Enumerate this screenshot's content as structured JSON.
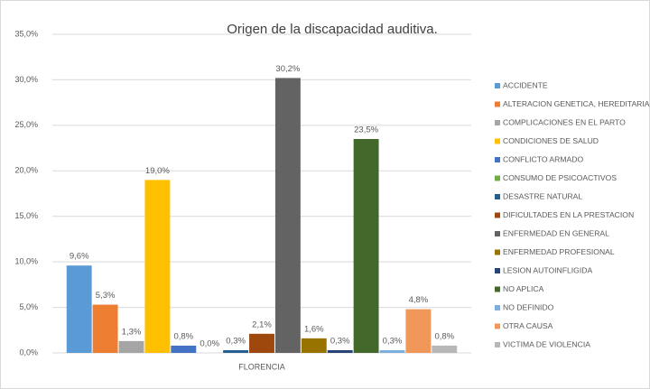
{
  "chart_data": {
    "type": "bar",
    "title": "Origen de la discapacidad auditiva.",
    "categories": [
      "FLORENCIA"
    ],
    "ylim": [
      0,
      35
    ],
    "yticks": [
      {
        "value": 0,
        "label": "0,0%"
      },
      {
        "value": 5,
        "label": "5,0%"
      },
      {
        "value": 10,
        "label": "10,0%"
      },
      {
        "value": 15,
        "label": "15,0%"
      },
      {
        "value": 20,
        "label": "20,0%"
      },
      {
        "value": 25,
        "label": "25,0%"
      },
      {
        "value": 30,
        "label": "30,0%"
      },
      {
        "value": 35,
        "label": "35,0%"
      }
    ],
    "grid": true,
    "legend": "right",
    "series": [
      {
        "name": "ACCIDENTE",
        "color": "#5b9bd5",
        "values": [
          9.6
        ],
        "value_labels": [
          "9,6%"
        ]
      },
      {
        "name": "ALTERACION GENETICA, HEREDITARIA",
        "color": "#ed7d31",
        "values": [
          5.3
        ],
        "value_labels": [
          "5,3%"
        ]
      },
      {
        "name": "COMPLICACIONES EN EL PARTO",
        "color": "#a5a5a5",
        "values": [
          1.3
        ],
        "value_labels": [
          "1,3%"
        ]
      },
      {
        "name": "CONDICIONES DE SALUD",
        "color": "#ffc000",
        "values": [
          19.0
        ],
        "value_labels": [
          "19,0%"
        ]
      },
      {
        "name": "CONFLICTO ARMADO",
        "color": "#4472c4",
        "values": [
          0.8
        ],
        "value_labels": [
          "0,8%"
        ]
      },
      {
        "name": "CONSUMO DE PSICOACTIVOS",
        "color": "#70ad47",
        "values": [
          0.0
        ],
        "value_labels": [
          "0,0%"
        ]
      },
      {
        "name": "DESASTRE NATURAL",
        "color": "#255e91",
        "values": [
          0.3
        ],
        "value_labels": [
          "0,3%"
        ]
      },
      {
        "name": "DIFICULTADES EN LA PRESTACION",
        "color": "#9e480e",
        "values": [
          2.1
        ],
        "value_labels": [
          "2,1%"
        ]
      },
      {
        "name": "ENFERMEDAD EN GENERAL",
        "color": "#636363",
        "values": [
          30.2
        ],
        "value_labels": [
          "30,2%"
        ]
      },
      {
        "name": "ENFERMEDAD PROFESIONAL",
        "color": "#997300",
        "values": [
          1.6
        ],
        "value_labels": [
          "1,6%"
        ]
      },
      {
        "name": "LESION AUTOINFLIGIDA",
        "color": "#264478",
        "values": [
          0.3
        ],
        "value_labels": [
          "0,3%"
        ]
      },
      {
        "name": "NO APLICA",
        "color": "#43682b",
        "values": [
          23.5
        ],
        "value_labels": [
          "23,5%"
        ]
      },
      {
        "name": "NO DEFINIDO",
        "color": "#7cafdd",
        "values": [
          0.3
        ],
        "value_labels": [
          "0,3%"
        ]
      },
      {
        "name": "OTRA CAUSA",
        "color": "#f1975a",
        "values": [
          4.8
        ],
        "value_labels": [
          "4,8%"
        ]
      },
      {
        "name": "VICTIMA DE VIOLENCIA",
        "color": "#b7b7b7",
        "values": [
          0.8
        ],
        "value_labels": [
          "0,8%"
        ]
      }
    ]
  }
}
